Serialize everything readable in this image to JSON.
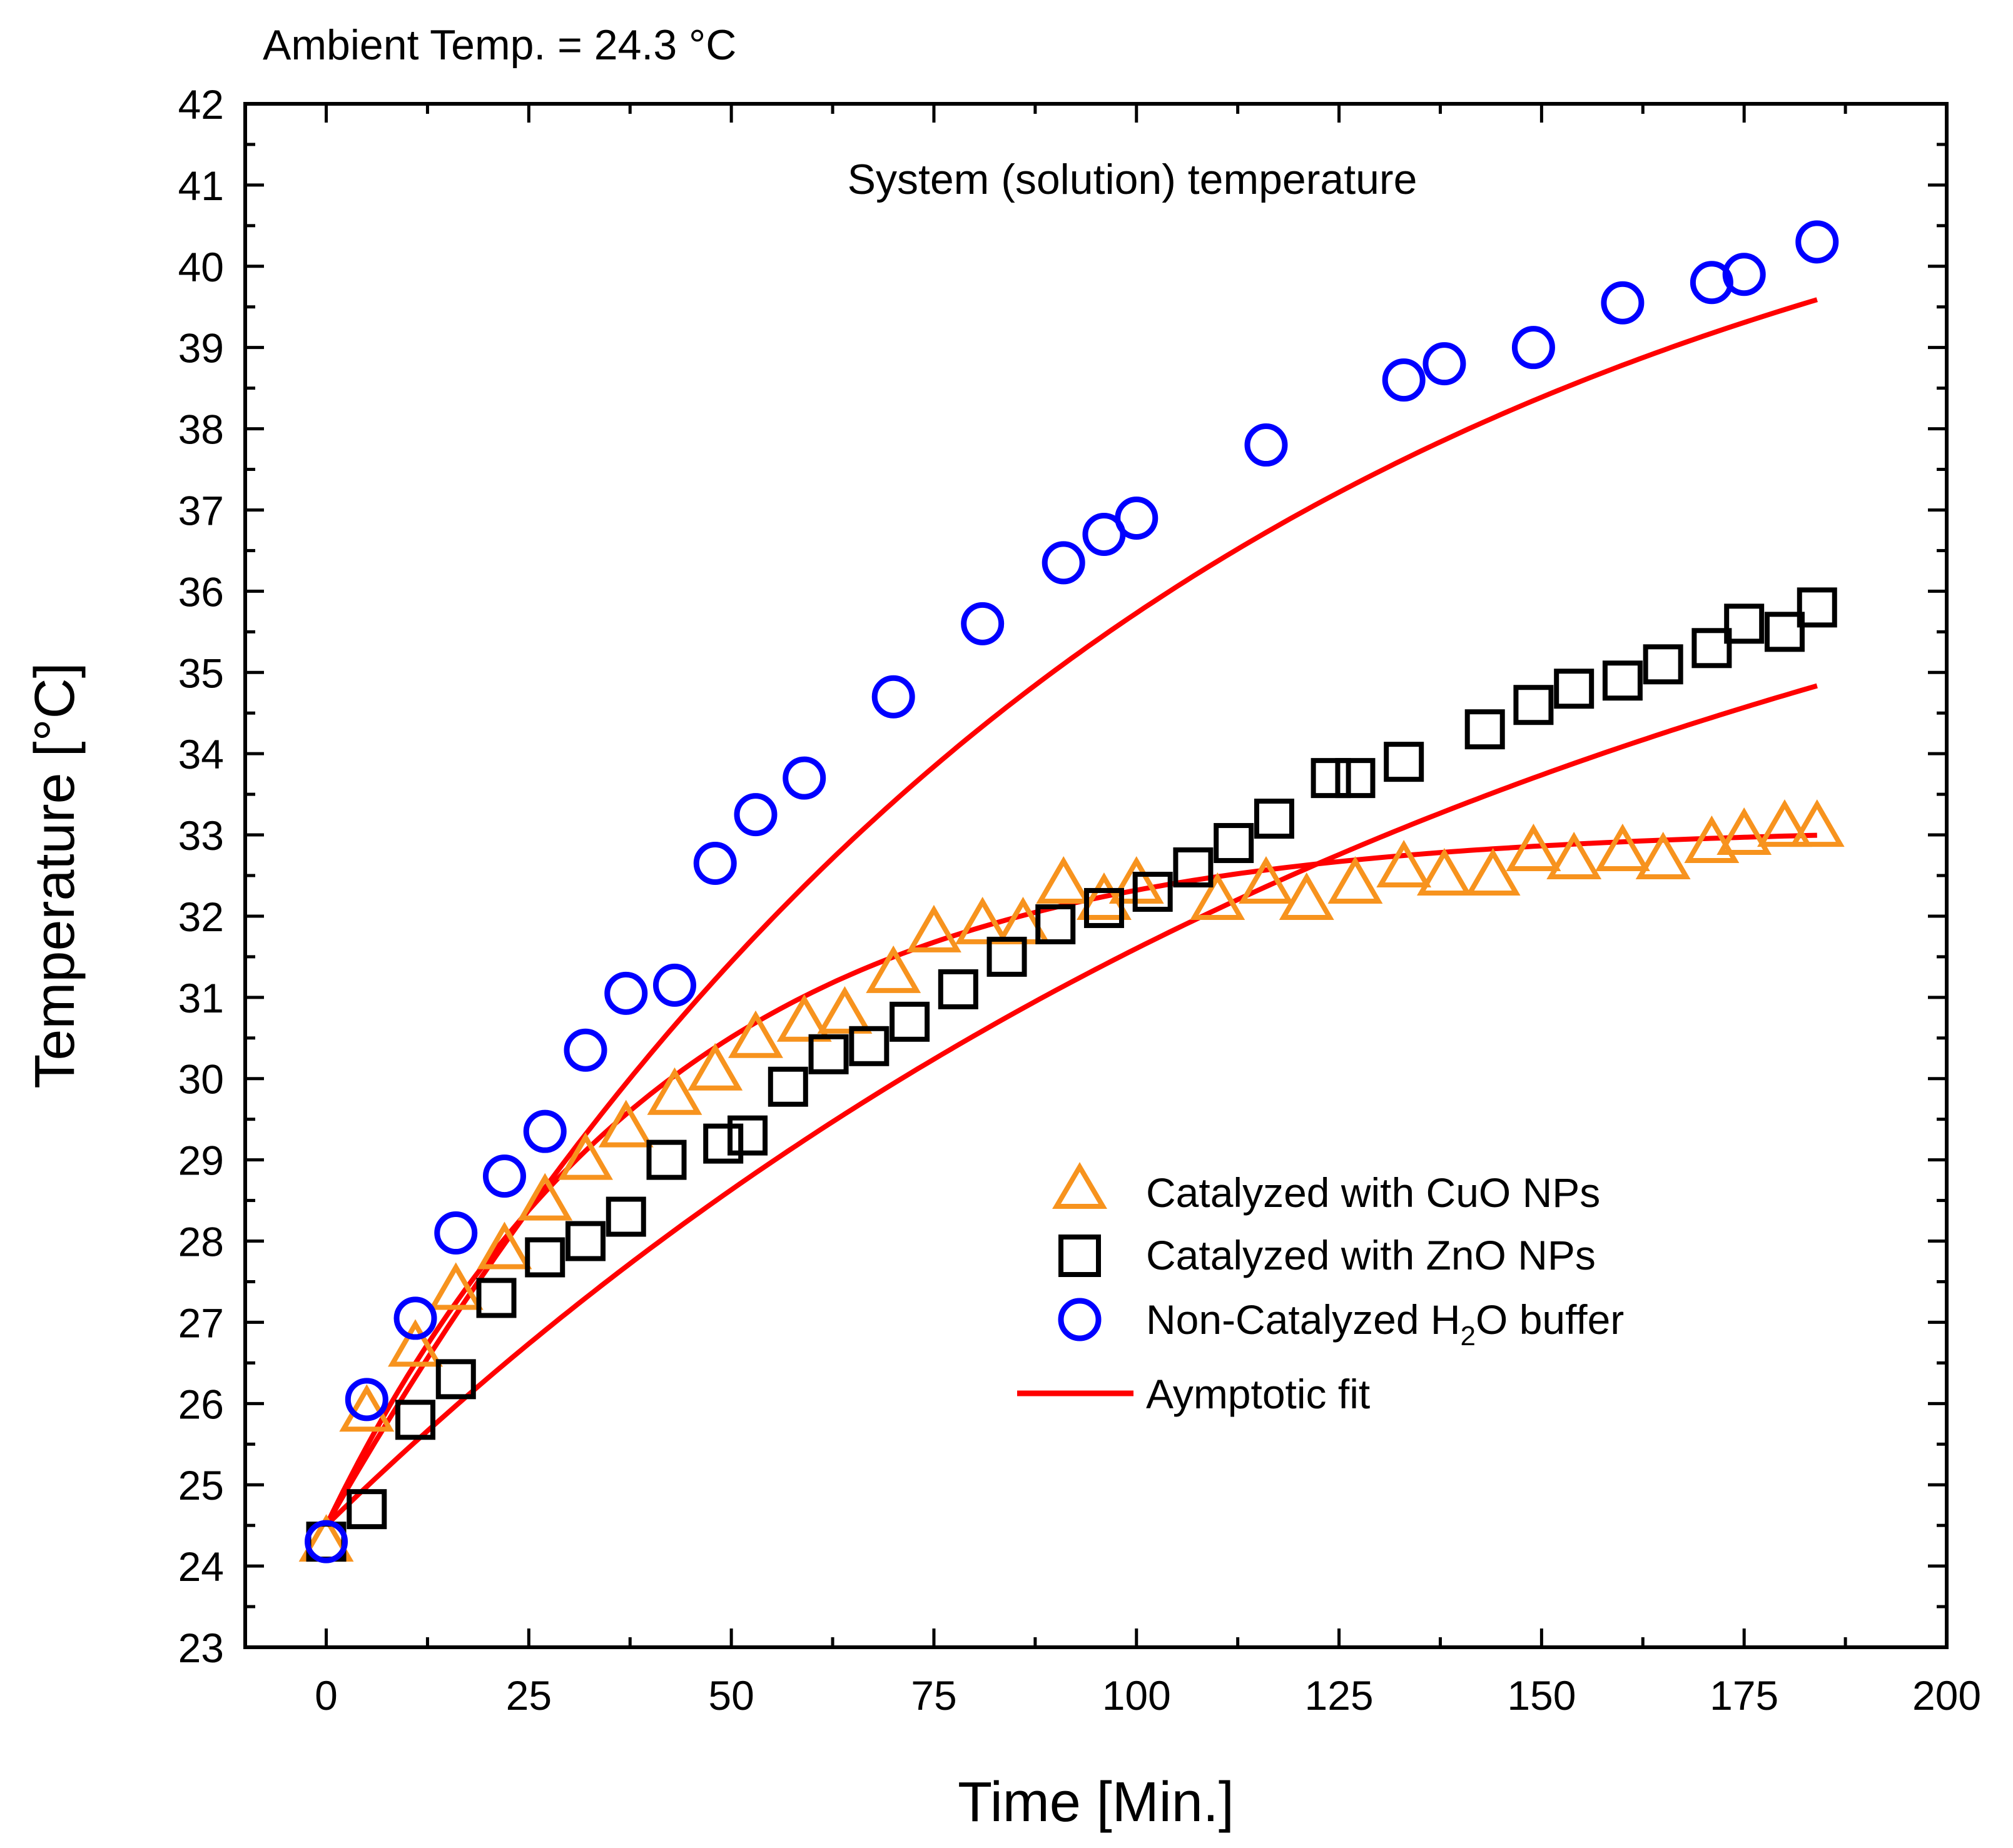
{
  "chart_data": {
    "type": "scatter",
    "annotations": {
      "ambient": "Ambient Temp. = 24.3 °C",
      "inner_title": "System (solution) temperature"
    },
    "xlabel": "Time [Min.]",
    "ylabel": "Temperature [°C]",
    "xlim": [
      -10,
      200
    ],
    "ylim": [
      23,
      42
    ],
    "xticks": [
      0,
      25,
      50,
      75,
      100,
      125,
      150,
      175,
      200
    ],
    "yticks": [
      23,
      24,
      25,
      26,
      27,
      28,
      29,
      30,
      31,
      32,
      33,
      34,
      35,
      36,
      37,
      38,
      39,
      40,
      41,
      42
    ],
    "legend_position": "center-right",
    "series": [
      {
        "name": "Catalyzed with CuO NPs",
        "marker": "triangle",
        "color": "#f7931e",
        "x": [
          0,
          5,
          11,
          16,
          22,
          27,
          32,
          37,
          43,
          48,
          53,
          59,
          64,
          70,
          75,
          81,
          86,
          91,
          96,
          100,
          110,
          116,
          121,
          127,
          133,
          138,
          144,
          149,
          154,
          160,
          165,
          171,
          175,
          180,
          184
        ],
        "y": [
          24.3,
          25.9,
          26.7,
          27.4,
          27.9,
          28.5,
          29.0,
          29.4,
          29.8,
          30.1,
          30.5,
          30.7,
          30.8,
          31.3,
          31.8,
          31.9,
          31.9,
          32.4,
          32.2,
          32.4,
          32.2,
          32.4,
          32.2,
          32.4,
          32.6,
          32.5,
          32.5,
          32.8,
          32.7,
          32.8,
          32.7,
          32.9,
          33.0,
          33.1,
          33.1
        ]
      },
      {
        "name": "Catalyzed with ZnO NPs",
        "marker": "square",
        "color": "#000000",
        "x": [
          0,
          5,
          11,
          16,
          21,
          27,
          32,
          37,
          42,
          49,
          52,
          57,
          62,
          67,
          72,
          78,
          84,
          90,
          96,
          102,
          107,
          112,
          117,
          124,
          127,
          133,
          143,
          149,
          154,
          160,
          165,
          171,
          175,
          180,
          184
        ],
        "y": [
          24.3,
          24.7,
          25.8,
          26.3,
          27.3,
          27.8,
          28.0,
          28.3,
          29.0,
          29.2,
          29.3,
          29.9,
          30.3,
          30.4,
          30.7,
          31.1,
          31.5,
          31.9,
          32.1,
          32.3,
          32.6,
          32.9,
          33.2,
          33.7,
          33.7,
          33.9,
          34.3,
          34.6,
          34.8,
          34.9,
          35.1,
          35.3,
          35.6,
          35.5,
          35.8
        ]
      },
      {
        "name": "Non-Catalyzed H2O buffer",
        "name_parts": [
          "Non-Catalyzed H",
          "2",
          "O buffer"
        ],
        "marker": "circle",
        "color": "#0000ff",
        "x": [
          0,
          5,
          11,
          16,
          22,
          27,
          32,
          37,
          43,
          48,
          53,
          59,
          70,
          81,
          91,
          96,
          100,
          116,
          133,
          138,
          149,
          160,
          171,
          175,
          184
        ],
        "y": [
          24.3,
          26.05,
          27.05,
          28.1,
          28.8,
          29.35,
          30.35,
          31.05,
          31.15,
          32.65,
          33.25,
          33.7,
          34.7,
          35.6,
          36.35,
          36.7,
          36.9,
          37.8,
          38.6,
          38.8,
          39.0,
          39.55,
          39.8,
          39.9,
          40.3
        ]
      },
      {
        "name": "Aymptotic fit",
        "marker": "line",
        "color": "#ff0000",
        "fits": [
          {
            "for": "CuO",
            "y0": 24.5,
            "yinf": 33.1,
            "k": 0.024
          },
          {
            "for": "ZnO",
            "y0": 24.5,
            "yinf": 39.2,
            "k": 0.0066
          },
          {
            "for": "H2O",
            "y0": 24.5,
            "yinf": 42.7,
            "k": 0.0096
          }
        ],
        "x_range": [
          0,
          184
        ]
      }
    ]
  },
  "colors": {
    "cuo": "#f7931e",
    "zno": "#000000",
    "h2o": "#0000ff",
    "fit": "#ff0000"
  }
}
